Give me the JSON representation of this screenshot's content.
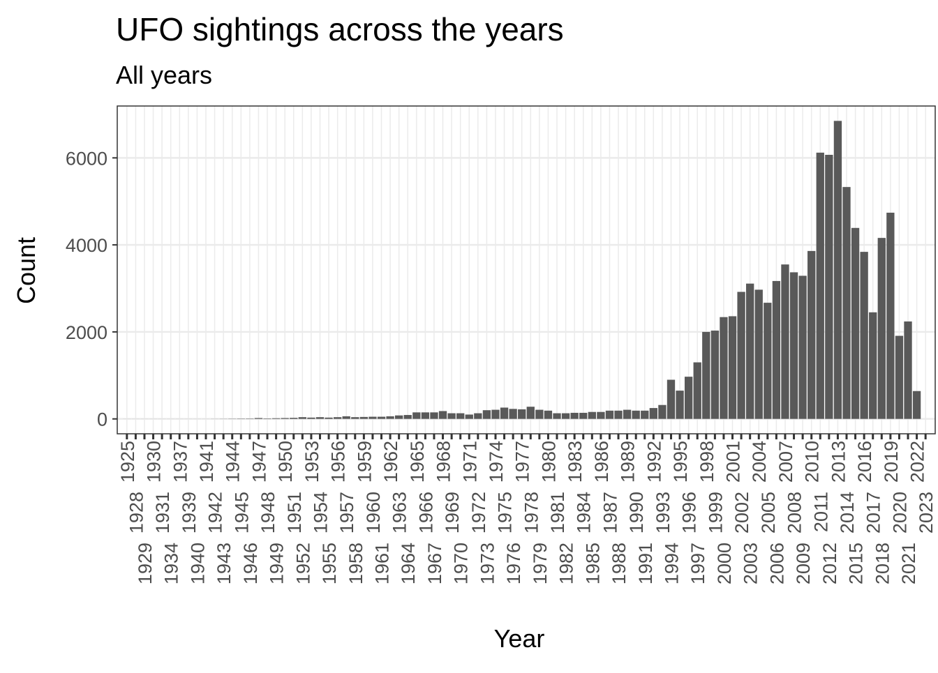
{
  "chart_data": {
    "type": "bar",
    "title": "UFO sightings across the years",
    "subtitle": "All years",
    "x_label": "Year",
    "y_label": "Count",
    "color": "#595959",
    "grid": true,
    "categories": [
      "1925",
      "1928",
      "1929",
      "1930",
      "1931",
      "1934",
      "1937",
      "1939",
      "1940",
      "1941",
      "1942",
      "1943",
      "1944",
      "1945",
      "1946",
      "1947",
      "1948",
      "1949",
      "1950",
      "1951",
      "1952",
      "1953",
      "1954",
      "1955",
      "1956",
      "1957",
      "1958",
      "1959",
      "1960",
      "1961",
      "1962",
      "1963",
      "1964",
      "1965",
      "1966",
      "1967",
      "1968",
      "1969",
      "1970",
      "1971",
      "1972",
      "1973",
      "1974",
      "1975",
      "1976",
      "1977",
      "1978",
      "1979",
      "1980",
      "1981",
      "1982",
      "1983",
      "1984",
      "1985",
      "1986",
      "1987",
      "1988",
      "1989",
      "1990",
      "1991",
      "1992",
      "1993",
      "1994",
      "1995",
      "1996",
      "1997",
      "1998",
      "1999",
      "2000",
      "2001",
      "2002",
      "2003",
      "2004",
      "2005",
      "2006",
      "2007",
      "2008",
      "2009",
      "2010",
      "2011",
      "2012",
      "2013",
      "2014",
      "2015",
      "2016",
      "2017",
      "2018",
      "2019",
      "2020",
      "2021",
      "2022",
      "2023"
    ],
    "values": [
      1,
      1,
      1,
      1,
      1,
      1,
      1,
      1,
      1,
      1,
      2,
      3,
      5,
      7,
      8,
      20,
      10,
      15,
      20,
      25,
      40,
      30,
      40,
      30,
      40,
      60,
      40,
      45,
      50,
      50,
      60,
      80,
      90,
      150,
      150,
      150,
      180,
      130,
      130,
      100,
      130,
      200,
      210,
      260,
      230,
      220,
      280,
      210,
      190,
      130,
      130,
      140,
      140,
      160,
      160,
      190,
      190,
      210,
      190,
      190,
      250,
      320,
      900,
      650,
      970,
      1300,
      2000,
      2030,
      2340,
      2360,
      2920,
      3110,
      2970,
      2670,
      3170,
      3550,
      3370,
      3290,
      3860,
      6120,
      6070,
      6850,
      5330,
      4390,
      3840,
      2450,
      4160,
      4740,
      1910,
      2240,
      640,
      null
    ],
    "ylim": [
      -342,
      7192
    ],
    "yticks": [
      0,
      2000,
      4000,
      6000
    ]
  }
}
